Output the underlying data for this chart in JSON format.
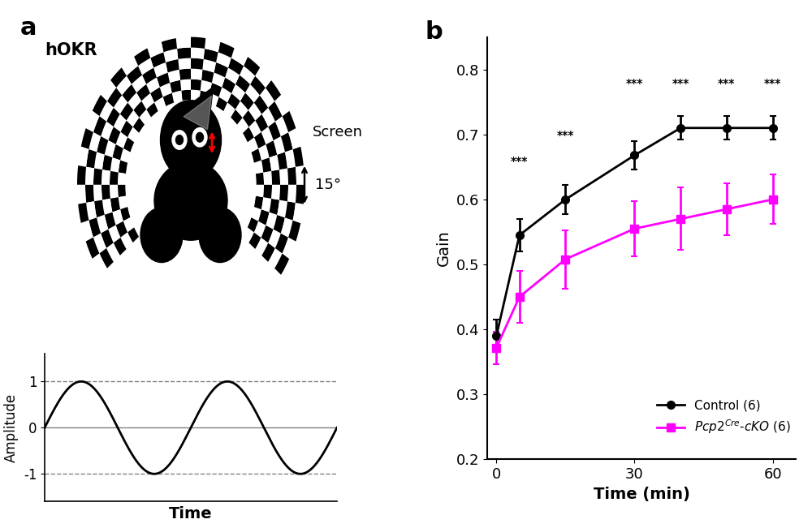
{
  "panel_b": {
    "time_points": [
      0,
      5,
      15,
      30,
      40,
      50,
      60
    ],
    "control_mean": [
      0.39,
      0.545,
      0.6,
      0.668,
      0.71,
      0.71,
      0.71
    ],
    "control_err": [
      0.025,
      0.025,
      0.022,
      0.022,
      0.018,
      0.018,
      0.018
    ],
    "ko_mean": [
      0.372,
      0.45,
      0.508,
      0.555,
      0.57,
      0.585,
      0.6
    ],
    "ko_err": [
      0.025,
      0.04,
      0.045,
      0.042,
      0.048,
      0.04,
      0.038
    ],
    "control_color": "#000000",
    "ko_color": "#FF00FF",
    "xlabel": "Time (min)",
    "ylabel": "Gain",
    "ylim": [
      0.2,
      0.85
    ],
    "yticks": [
      0.2,
      0.3,
      0.4,
      0.5,
      0.6,
      0.7,
      0.8
    ],
    "xticks": [
      0,
      30,
      60
    ],
    "title": "b",
    "legend_control": "Control (6)",
    "legend_ko": "$Pcp2^{Cre}$-$cKO$ (6)"
  },
  "sig_info": [
    [
      5,
      0.65,
      "***"
    ],
    [
      15,
      0.69,
      "***"
    ],
    [
      30,
      0.77,
      "***"
    ],
    [
      40,
      0.77,
      "***"
    ],
    [
      50,
      0.77,
      "***"
    ],
    [
      60,
      0.77,
      "***"
    ]
  ]
}
